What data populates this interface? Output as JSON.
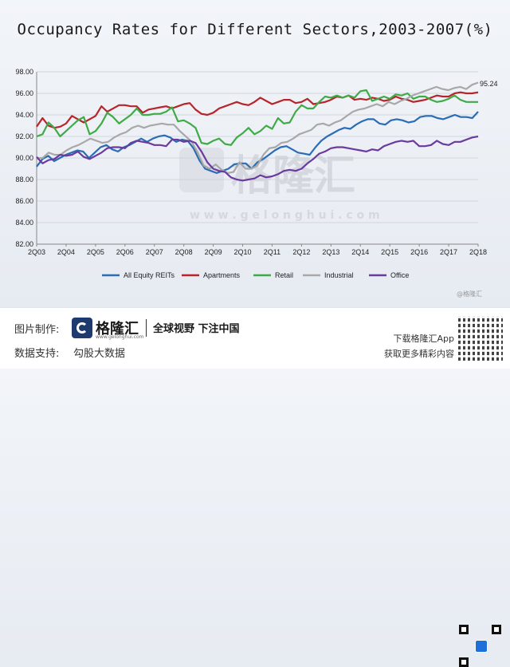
{
  "chart_data": {
    "type": "line",
    "title": "Occupancy Rates for Different Sectors,2003-2007(%)",
    "xlabel": "",
    "ylabel": "",
    "ylim": [
      82,
      98
    ],
    "yticks": [
      "98.00",
      "96.00",
      "94.00",
      "92.00",
      "90.00",
      "88.00",
      "86.00",
      "84.00",
      "82.00"
    ],
    "xticks": [
      "2Q03",
      "2Q04",
      "2Q05",
      "2Q06",
      "2Q07",
      "2Q08",
      "2Q09",
      "2Q10",
      "2Q11",
      "2Q12",
      "2Q13",
      "2Q14",
      "2Q15",
      "2Q16",
      "2Q17",
      "2Q18"
    ],
    "x_range_quarters": [
      0,
      60
    ],
    "end_annotation": "95.24",
    "legend_position": "bottom",
    "series": [
      {
        "name": "All Equity REITs",
        "color": "#2b6cb5",
        "values": [
          89.2,
          89.9,
          90.2,
          89.7,
          90.0,
          90.3,
          90.5,
          90.7,
          90.6,
          90.0,
          90.5,
          91.0,
          91.2,
          90.8,
          90.6,
          91.0,
          91.2,
          91.5,
          91.8,
          91.5,
          91.8,
          92.0,
          92.1,
          91.9,
          91.5,
          91.7,
          91.6,
          90.9,
          89.8,
          89.0,
          88.8,
          88.6,
          88.8,
          89.0,
          89.4,
          89.5,
          89.5,
          89.0,
          89.6,
          89.9,
          90.3,
          90.7,
          91.0,
          91.1,
          90.8,
          90.5,
          90.4,
          90.3,
          91.0,
          91.6,
          92.0,
          92.3,
          92.6,
          92.8,
          92.7,
          93.1,
          93.4,
          93.6,
          93.6,
          93.2,
          93.1,
          93.5,
          93.6,
          93.5,
          93.3,
          93.4,
          93.8,
          93.9,
          93.9,
          93.7,
          93.6,
          93.8,
          94.0,
          93.8,
          93.8,
          93.7,
          94.3
        ]
      },
      {
        "name": "Apartments",
        "color": "#b7242a",
        "values": [
          92.9,
          93.7,
          93.0,
          92.8,
          92.9,
          93.2,
          93.9,
          93.6,
          93.3,
          93.6,
          93.9,
          94.8,
          94.3,
          94.6,
          94.9,
          94.9,
          94.8,
          94.8,
          94.2,
          94.5,
          94.6,
          94.7,
          94.8,
          94.6,
          94.8,
          95.0,
          95.1,
          94.5,
          94.1,
          94.0,
          94.2,
          94.6,
          94.8,
          95.0,
          95.2,
          95.0,
          94.9,
          95.2,
          95.6,
          95.3,
          95.0,
          95.2,
          95.4,
          95.4,
          95.1,
          95.2,
          95.5,
          95.0,
          95.1,
          95.2,
          95.4,
          95.7,
          95.6,
          95.8,
          95.4,
          95.5,
          95.4,
          95.6,
          95.5,
          95.3,
          95.4,
          95.7,
          95.5,
          95.4,
          95.2,
          95.3,
          95.4,
          95.6,
          95.8,
          95.7,
          95.7,
          96.0,
          96.1,
          96.0,
          96.0,
          96.1
        ]
      },
      {
        "name": "Retail",
        "color": "#3faa48",
        "values": [
          92.0,
          92.2,
          93.3,
          92.8,
          92.0,
          92.5,
          93.0,
          93.5,
          93.8,
          92.2,
          92.5,
          93.2,
          94.2,
          93.8,
          93.2,
          93.6,
          94.0,
          94.6,
          94.0,
          94.0,
          94.1,
          94.1,
          94.3,
          94.7,
          93.4,
          93.5,
          93.2,
          92.8,
          91.4,
          91.3,
          91.6,
          91.8,
          91.3,
          91.2,
          91.9,
          92.3,
          92.8,
          92.2,
          92.5,
          93.0,
          92.7,
          93.7,
          93.2,
          93.3,
          94.3,
          94.9,
          94.6,
          94.6,
          95.2,
          95.7,
          95.6,
          95.8,
          95.6,
          95.8,
          95.6,
          96.2,
          96.3,
          95.3,
          95.5,
          95.7,
          95.5,
          95.9,
          95.8,
          96.0,
          95.5,
          95.7,
          95.7,
          95.4,
          95.2,
          95.3,
          95.5,
          95.8,
          95.4,
          95.2,
          95.2,
          95.2
        ]
      },
      {
        "name": "Industrial",
        "color": "#a8a8a8",
        "values": [
          90.0,
          90.0,
          90.5,
          90.3,
          90.3,
          90.7,
          91.0,
          91.2,
          91.5,
          91.8,
          91.6,
          91.4,
          91.5,
          91.9,
          92.2,
          92.4,
          92.8,
          93.0,
          92.8,
          93.0,
          93.1,
          93.2,
          93.1,
          93.1,
          92.5,
          92.0,
          91.5,
          90.5,
          89.3,
          89.0,
          89.4,
          88.9,
          88.6,
          88.7,
          89.6,
          89.0,
          89.0,
          89.3,
          90.3,
          90.9,
          91.0,
          91.4,
          91.5,
          91.8,
          92.2,
          92.4,
          92.6,
          93.1,
          93.2,
          93.0,
          93.3,
          93.5,
          93.9,
          94.3,
          94.5,
          94.6,
          94.8,
          95.0,
          94.8,
          95.2,
          95.0,
          95.3,
          95.5,
          95.8,
          96.0,
          96.2,
          96.4,
          96.6,
          96.4,
          96.3,
          96.5,
          96.6,
          96.4,
          96.8,
          97.0
        ]
      },
      {
        "name": "Office",
        "color": "#6a3a9e",
        "values": [
          90.1,
          89.5,
          89.8,
          89.9,
          90.3,
          90.2,
          90.3,
          90.6,
          90.1,
          89.9,
          90.2,
          90.5,
          90.9,
          91.0,
          91.0,
          90.9,
          91.4,
          91.6,
          91.5,
          91.4,
          91.2,
          91.2,
          91.1,
          91.7,
          91.7,
          91.5,
          91.6,
          91.4,
          90.6,
          89.6,
          89.0,
          88.8,
          88.7,
          88.2,
          88.0,
          87.9,
          88.0,
          88.1,
          88.4,
          88.2,
          88.3,
          88.5,
          88.8,
          88.9,
          88.8,
          89.0,
          89.5,
          89.9,
          90.4,
          90.6,
          90.9,
          91.0,
          91.0,
          90.9,
          90.8,
          90.7,
          90.6,
          90.8,
          90.7,
          91.1,
          91.3,
          91.5,
          91.6,
          91.5,
          91.6,
          91.1,
          91.1,
          91.2,
          91.6,
          91.3,
          91.2,
          91.5,
          91.5,
          91.7,
          91.9,
          92.0
        ]
      }
    ]
  },
  "watermark": {
    "logo_text": "格隆汇",
    "domain": "w w w . g e l o n g h u i . c o m"
  },
  "footer": {
    "made_by_label": "图片制作:",
    "brand_name": "格隆汇",
    "brand_domain": "www.gelonghui.com",
    "slogan": "全球视野 下注中国",
    "data_support_label": "数据支持:",
    "data_support_value": "勾股大数据",
    "download_text": "下载格隆汇App",
    "more_text": "获取更多精彩内容",
    "qr_icon": "qr-code-icon"
  },
  "corner_mark": "@格隆汇"
}
